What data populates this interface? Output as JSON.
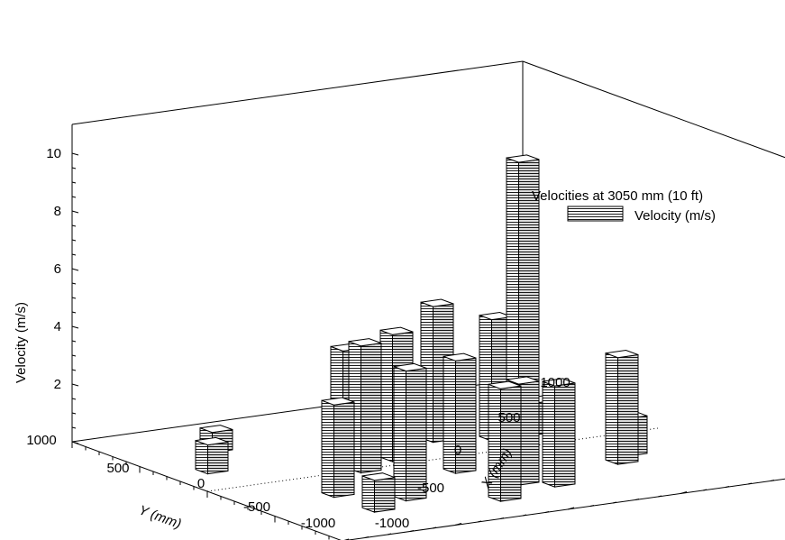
{
  "chart_data": {
    "type": "bar",
    "subtype": "3d-bar",
    "title": "",
    "zlabel": "Velocity (m/s)",
    "xlabel": "X (mm)",
    "ylabel": "Y (mm)",
    "zlim": [
      0,
      10
    ],
    "xlim": [
      -1000,
      1000
    ],
    "ylim": [
      -1000,
      1000
    ],
    "z_ticks": [
      "2",
      "4",
      "6",
      "8",
      "10"
    ],
    "x_ticks": [
      "-1000",
      "-500",
      "0",
      "500",
      "1000"
    ],
    "y_ticks": [
      "-1000",
      "-500",
      "0",
      "500",
      "1000"
    ],
    "legend": {
      "position": "right",
      "title": "Velocities at 3050 mm (10 ft)",
      "entry": "Velocity (m/s)"
    },
    "points": [
      {
        "x": -200,
        "y": 300,
        "v": 3.6
      },
      {
        "x": 200,
        "y": 300,
        "v": 4.7
      },
      {
        "x": 400,
        "y": 0,
        "v": 10.0
      },
      {
        "x": 400,
        "y": 200,
        "v": 4.2
      },
      {
        "x": 600,
        "y": 200,
        "v": 1.1
      },
      {
        "x": -600,
        "y": 600,
        "v": 0.7
      },
      {
        "x": -800,
        "y": 300,
        "v": 1.0
      },
      {
        "x": -100,
        "y": 100,
        "v": 4.4
      },
      {
        "x": -300,
        "y": 0,
        "v": 4.4
      },
      {
        "x": -600,
        "y": -300,
        "v": 3.2
      },
      {
        "x": 0,
        "y": -200,
        "v": 3.9
      },
      {
        "x": 200,
        "y": -600,
        "v": 3.5
      },
      {
        "x": 100,
        "y": -500,
        "v": 3.5
      },
      {
        "x": -600,
        "y": -600,
        "v": 1.1
      },
      {
        "x": 600,
        "y": -400,
        "v": 3.7
      },
      {
        "x": 700,
        "y": -300,
        "v": 1.3
      },
      {
        "x": -400,
        "y": -500,
        "v": 4.5
      },
      {
        "x": -100,
        "y": -700,
        "v": 3.9
      }
    ]
  }
}
